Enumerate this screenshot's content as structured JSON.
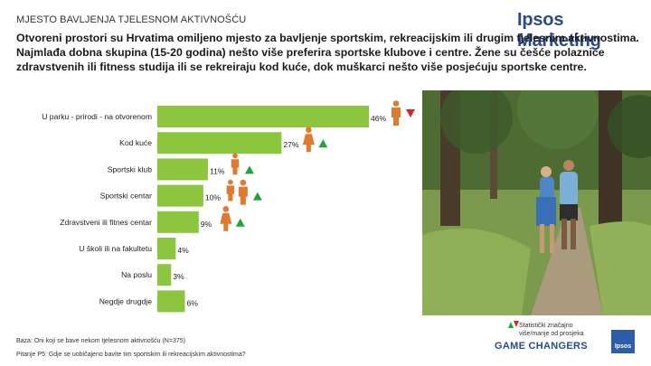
{
  "header": {
    "kicker": "MJESTO BAVLJENJA TJELESNOM AKTIVNOŠĆU",
    "brand": "Ipsos Marketing",
    "headline": "Otvoreni prostori su Hrvatima omiljeno mjesto za bavljenje sportskim, rekreacijskim ili drugim tjelesnim aktivnostima. Najmlađa dobna skupina (15-20 godina) nešto više preferira sportske klubove i centre. Žene su češće polaznice zdravstvenih ili fitness studija ili se rekreiraju kod kuće, dok muškarci nešto više posjećuju sportske centre."
  },
  "chart_data": {
    "type": "bar",
    "orientation": "horizontal",
    "unit": "%",
    "xlim": [
      0,
      46
    ],
    "bar_color": "#8cc63f",
    "categories": [
      "U parku - prirodi - na otvorenom",
      "Kod kuće",
      "Sportski klub",
      "Sportski centar",
      "Zdravstveni ili fitnes centar",
      "U školi ili na fakultetu",
      "Na poslu",
      "Negdje drugdje"
    ],
    "values": [
      46,
      27,
      11,
      10,
      9,
      4,
      3,
      6
    ],
    "value_labels": [
      "46%",
      "27%",
      "11%",
      "10%",
      "9%",
      "4%",
      "3%",
      "6%"
    ],
    "annotations": [
      {
        "category": "U parku - prirodi - na otvorenom",
        "icons": [
          "person-male"
        ],
        "trend": "down"
      },
      {
        "category": "Kod kuće",
        "icons": [
          "person-female"
        ],
        "trend": "up"
      },
      {
        "category": "Sportski klub",
        "icons": [
          "person-young"
        ],
        "trend": "up"
      },
      {
        "category": "Sportski centar",
        "icons": [
          "person-young",
          "person-male"
        ],
        "trend": "up"
      },
      {
        "category": "Zdravstveni ili fitnes centar",
        "icons": [
          "person-female"
        ],
        "trend": "up"
      }
    ]
  },
  "colors": {
    "bar": "#8cc63f",
    "icon": "#e07a2e",
    "up": "#21a33a",
    "down": "#d7262b",
    "brand": "#2b4b8c"
  },
  "legend": {
    "text": "Statistički značajno više/manje od prosjeka"
  },
  "footer": {
    "base": "Baza: Oni koji se bave nekom tjelesnom aktivnošću (N=375)",
    "question": "Pitanje P5: Gdje se uobičajeno bavite tim sportskim ili rekreacijskim aktivnostima?",
    "tagline": "GAME CHANGERS",
    "logo_text": "Ipsos"
  }
}
